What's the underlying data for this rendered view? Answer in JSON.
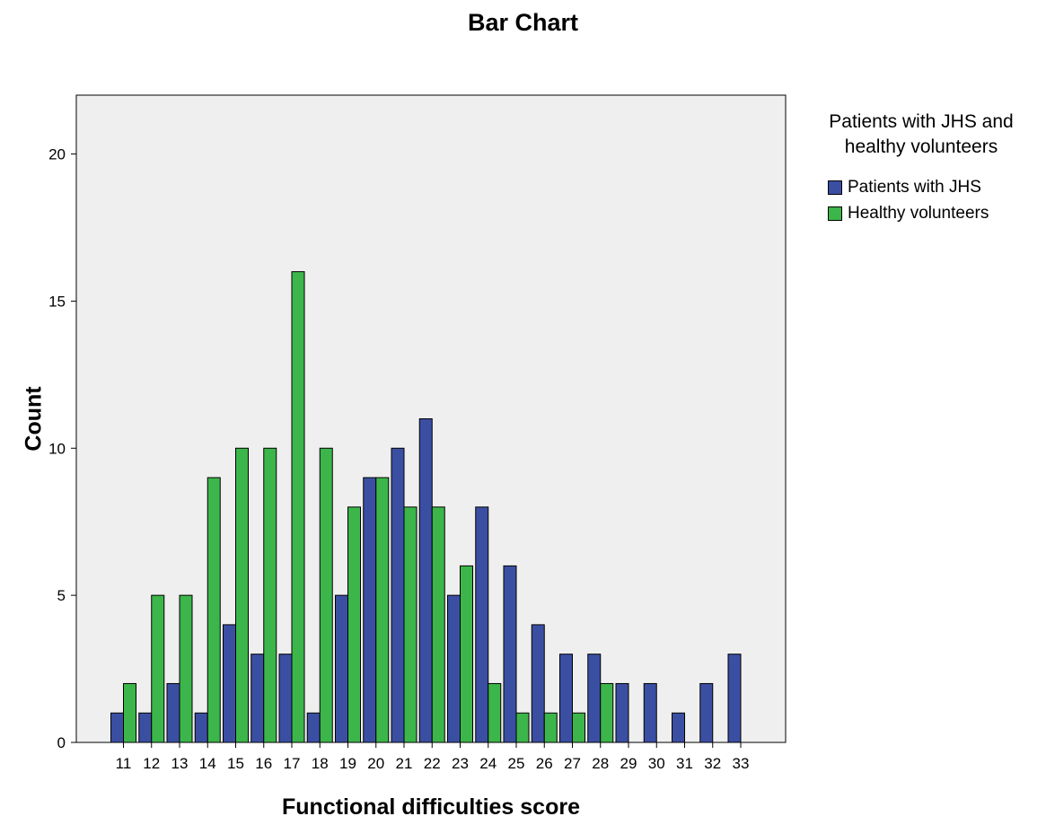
{
  "chart_data": {
    "type": "bar",
    "title": "Bar Chart",
    "xlabel": "Functional difficulties score",
    "ylabel": "Count",
    "ylim": [
      0,
      22
    ],
    "yticks": [
      0,
      5,
      10,
      15,
      20
    ],
    "categories": [
      "11",
      "12",
      "13",
      "14",
      "15",
      "16",
      "17",
      "18",
      "19",
      "20",
      "21",
      "22",
      "23",
      "24",
      "25",
      "26",
      "27",
      "28",
      "29",
      "30",
      "31",
      "32",
      "33"
    ],
    "legend_title": "Patients with JHS and healthy volunteers",
    "legend_position": "right",
    "series": [
      {
        "name": "Patients with JHS",
        "color": "#3b4fa2",
        "values": [
          1,
          1,
          2,
          1,
          4,
          3,
          3,
          1,
          5,
          9,
          10,
          11,
          5,
          8,
          6,
          4,
          3,
          3,
          2,
          2,
          1,
          2,
          3
        ]
      },
      {
        "name": "Healthy volunteers",
        "color": "#3cb64a",
        "values": [
          2,
          5,
          5,
          9,
          10,
          10,
          16,
          10,
          8,
          9,
          8,
          8,
          6,
          2,
          1,
          1,
          1,
          2,
          0,
          0,
          0,
          0,
          0
        ]
      }
    ],
    "plot_background": "#efefef",
    "grid": false
  }
}
